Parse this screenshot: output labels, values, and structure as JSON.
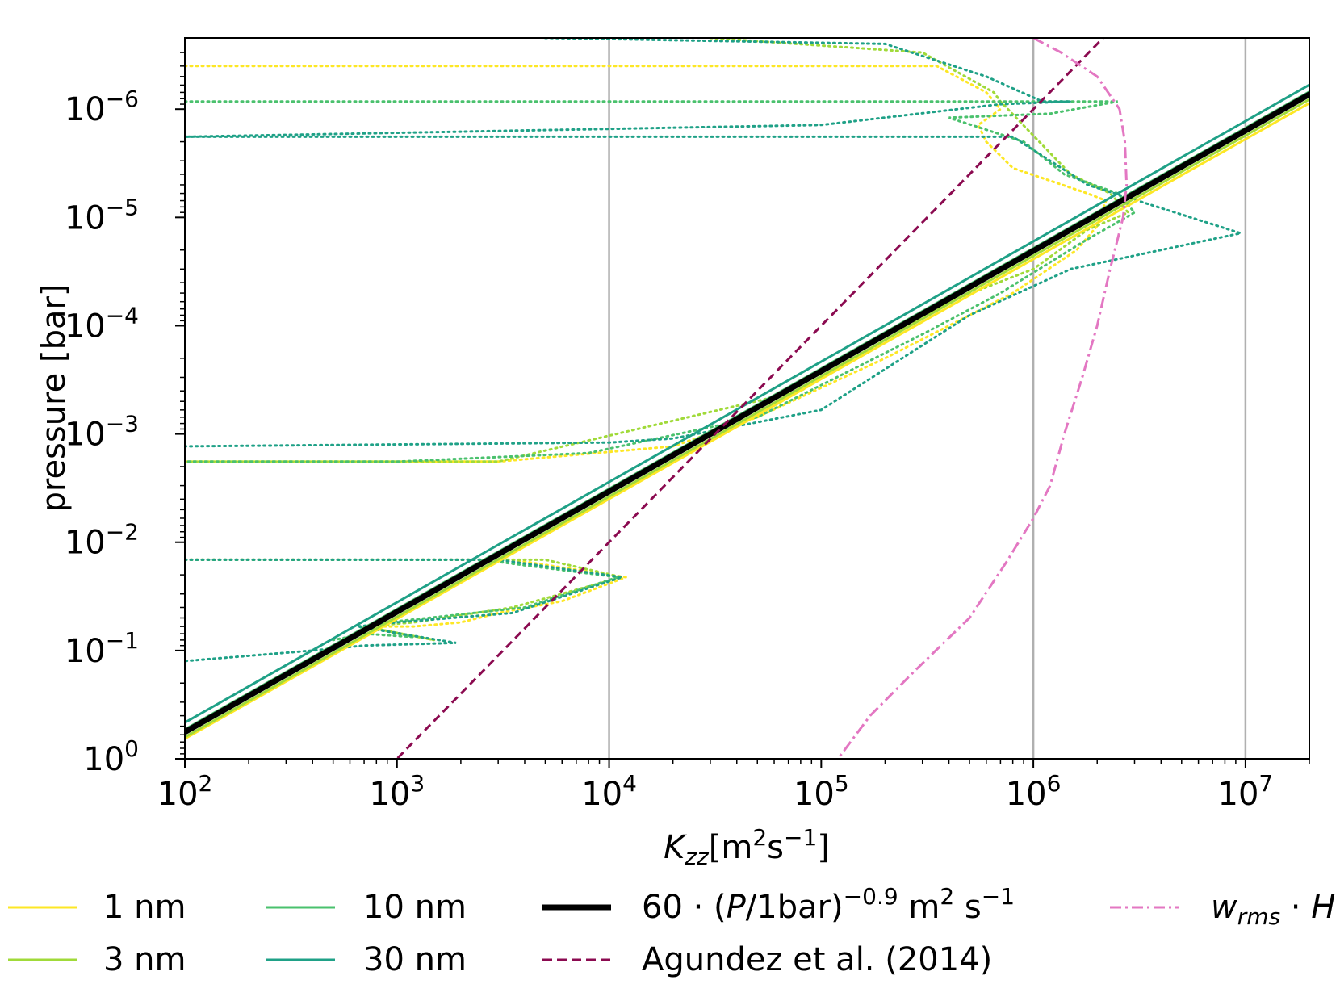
{
  "chart_data": {
    "type": "line",
    "xscale": "log",
    "yscale": "log",
    "xlim": [
      100,
      20000000
    ],
    "ylim": [
      1,
      2.2e-07
    ],
    "y_inverted": true,
    "grid": "x-major-only",
    "xlabel": {
      "main": "K",
      "sub": "zz",
      "unit_open": "[m",
      "unit_exp1": "2",
      "unit_mid": "s",
      "unit_exp2": "−1",
      "unit_close": "]"
    },
    "ylabel": "pressure [bar]",
    "xticks": [
      {
        "value": 100,
        "base": "10",
        "exp": "2"
      },
      {
        "value": 1000,
        "base": "10",
        "exp": "3"
      },
      {
        "value": 10000,
        "base": "10",
        "exp": "4"
      },
      {
        "value": 100000,
        "base": "10",
        "exp": "5"
      },
      {
        "value": 1000000,
        "base": "10",
        "exp": "6"
      },
      {
        "value": 10000000,
        "base": "10",
        "exp": "7"
      }
    ],
    "yticks": [
      {
        "value": 1e-06,
        "base": "10",
        "exp": "−6"
      },
      {
        "value": 1e-05,
        "base": "10",
        "exp": "−5"
      },
      {
        "value": 0.0001,
        "base": "10",
        "exp": "−4"
      },
      {
        "value": 0.001,
        "base": "10",
        "exp": "−3"
      },
      {
        "value": 0.01,
        "base": "10",
        "exp": "−2"
      },
      {
        "value": 0.1,
        "base": "10",
        "exp": "−1"
      },
      {
        "value": 1,
        "base": "10",
        "exp": "0"
      }
    ],
    "lines": [
      {
        "name": "1 nm",
        "color": "#fde725",
        "style": "solid",
        "coef": 68,
        "exponent": -0.903
      },
      {
        "name": "3 nm",
        "color": "#a0da39",
        "style": "solid",
        "coef": 66,
        "exponent": -0.9
      },
      {
        "name": "10 nm",
        "color": "#4ac16d",
        "style": "solid",
        "coef": 57,
        "exponent": -0.9
      },
      {
        "name": "30 nm",
        "color": "#1fa187",
        "style": "solid",
        "coef": 50,
        "exponent": -0.9
      },
      {
        "name": "60·(P/1bar)^−0.9 m² s^−1",
        "color": "#000000",
        "style": "solid",
        "coef": 60,
        "exponent": -0.9
      },
      {
        "name": "Agundez et al. (2014)",
        "color": "#8b0a50",
        "style": "dashed",
        "coef": 1000,
        "exponent": -0.5
      }
    ],
    "wrms_curve": {
      "name": "w_rms · H",
      "color": "#e377c2",
      "points": [
        [
          1000000,
          2.2e-07
        ],
        [
          1350000,
          3e-07
        ],
        [
          2000000,
          5e-07
        ],
        [
          2550000,
          1e-06
        ],
        [
          2700000,
          2e-06
        ],
        [
          2750000,
          5e-06
        ],
        [
          2650000,
          1e-05
        ],
        [
          2300000,
          3e-05
        ],
        [
          2000000,
          0.0001
        ],
        [
          1700000,
          0.0003
        ],
        [
          1400000,
          0.001
        ],
        [
          1200000,
          0.003
        ],
        [
          1000000,
          0.006
        ],
        [
          750000,
          0.015
        ],
        [
          500000,
          0.05
        ],
        [
          280000,
          0.15
        ],
        [
          170000,
          0.4
        ],
        [
          120000,
          1
        ]
      ]
    },
    "dotted_profiles": [
      {
        "color": "#fde725",
        "points": [
          [
            100,
            4e-07
          ],
          [
            350000,
            4e-07
          ],
          [
            600000,
            7e-07
          ],
          [
            700000,
            1e-06
          ],
          [
            550000,
            1.4e-06
          ],
          [
            600000,
            2e-06
          ],
          [
            800000,
            3.5e-06
          ],
          [
            1800000,
            6e-06
          ],
          [
            2200000,
            7e-06
          ],
          [
            2000000,
            1.2e-05
          ],
          [
            1600000,
            2e-05
          ],
          [
            800000,
            5e-05
          ],
          [
            200000,
            0.0002
          ],
          [
            50000,
            0.0007
          ],
          [
            20000,
            0.0013
          ],
          [
            3000,
            0.0018
          ],
          [
            100,
            0.0018
          ]
        ]
      },
      {
        "color": "#a0da39",
        "points": [
          [
            30000,
            2.2e-07
          ],
          [
            300000,
            3e-07
          ],
          [
            650000,
            7e-07
          ],
          [
            700000,
            8.5e-07
          ],
          [
            1500000,
            4e-06
          ],
          [
            2300000,
            6e-06
          ],
          [
            2800000,
            9e-06
          ],
          [
            1800000,
            1.3e-05
          ],
          [
            1000000,
            3e-05
          ],
          [
            400000,
            6e-05
          ],
          [
            80000,
            0.0004
          ],
          [
            3000,
            0.0018
          ],
          [
            100,
            0.0018
          ]
        ]
      },
      {
        "color": "#4ac16d",
        "points": [
          [
            100,
            8.5e-07
          ],
          [
            1800000,
            8.5e-07
          ],
          [
            2500000,
            8.5e-07
          ],
          [
            1200000,
            1.1e-06
          ],
          [
            400000,
            1.2e-06
          ],
          [
            900000,
            2e-06
          ],
          [
            1400000,
            4e-06
          ],
          [
            2500000,
            6e-06
          ],
          [
            3000000,
            9e-06
          ],
          [
            1700000,
            1.7e-05
          ],
          [
            700000,
            5e-05
          ],
          [
            300000,
            0.00012
          ],
          [
            50000,
            0.0007
          ],
          [
            8000,
            0.0015
          ],
          [
            1000,
            0.0018
          ],
          [
            100,
            0.0018
          ]
        ]
      },
      {
        "color": "#1fa187",
        "points": [
          [
            5000,
            2.2e-07
          ],
          [
            200000,
            2.5e-07
          ],
          [
            600000,
            5e-07
          ],
          [
            1100000,
            8.5e-07
          ],
          [
            1500000,
            8.5e-07
          ],
          [
            700000,
            9e-07
          ],
          [
            100000,
            1.4e-06
          ],
          [
            100,
            1.8e-06
          ],
          [
            800000,
            1.8e-06
          ],
          [
            1800000,
            5e-06
          ],
          [
            9500000,
            1.4e-05
          ],
          [
            1500000,
            3e-05
          ],
          [
            500000,
            8e-05
          ],
          [
            100000,
            0.0006
          ],
          [
            20000,
            0.0011
          ],
          [
            10000,
            0.0012
          ],
          [
            100,
            0.0013
          ]
        ]
      },
      {
        "color": "#fde725",
        "points": [
          [
            100,
            0.0145
          ],
          [
            3500,
            0.0145
          ],
          [
            10000,
            0.02
          ],
          [
            12000,
            0.021
          ],
          [
            6000,
            0.035
          ],
          [
            3000,
            0.045
          ],
          [
            2000,
            0.055
          ],
          [
            1200,
            0.06
          ],
          [
            800,
            0.06
          ]
        ]
      },
      {
        "color": "#a0da39",
        "points": [
          [
            100,
            0.0145
          ],
          [
            5000,
            0.0145
          ],
          [
            11500,
            0.021
          ],
          [
            3500,
            0.04
          ],
          [
            1200,
            0.055
          ],
          [
            700,
            0.06
          ],
          [
            1500,
            0.08
          ],
          [
            700,
            0.06
          ]
        ]
      },
      {
        "color": "#4ac16d",
        "points": [
          [
            100,
            0.0145
          ],
          [
            2500,
            0.0145
          ],
          [
            11000,
            0.021
          ],
          [
            4000,
            0.04
          ],
          [
            900,
            0.055
          ],
          [
            700,
            0.06
          ],
          [
            1200,
            0.075
          ],
          [
            700,
            0.07
          ],
          [
            500,
            0.08
          ]
        ]
      },
      {
        "color": "#1fa187",
        "points": [
          [
            100,
            0.0145
          ],
          [
            3000,
            0.0145
          ],
          [
            11500,
            0.021
          ],
          [
            3500,
            0.045
          ],
          [
            1000,
            0.055
          ],
          [
            650,
            0.06
          ],
          [
            1900,
            0.085
          ],
          [
            700,
            0.09
          ],
          [
            400,
            0.1
          ],
          [
            100,
            0.125
          ]
        ]
      }
    ],
    "legend": {
      "placement": "bottom",
      "entries": [
        {
          "label": "1 nm",
          "color": "#fde725",
          "style": "solid"
        },
        {
          "label": "3 nm",
          "color": "#a0da39",
          "style": "solid"
        },
        {
          "label": "10 nm",
          "color": "#4ac16d",
          "style": "solid"
        },
        {
          "label": "30 nm",
          "color": "#1fa187",
          "style": "solid"
        },
        {
          "label_prefix": "60 · (",
          "label_var": "P",
          "label_mid": "/1bar)",
          "label_exp": "−0.9",
          "label_unit": " m",
          "label_unit_exp": "2",
          "label_unit_s": " s",
          "label_unit_s_exp": "−1",
          "color": "#000000",
          "style": "thick"
        },
        {
          "label": "Agundez et al. (2014)",
          "color": "#8b0a50",
          "style": "dashed"
        },
        {
          "label_var": "w",
          "label_sub": "rms",
          "label_rest": " · ",
          "label_var2": "H",
          "color": "#e377c2",
          "style": "dashdot"
        }
      ]
    }
  }
}
